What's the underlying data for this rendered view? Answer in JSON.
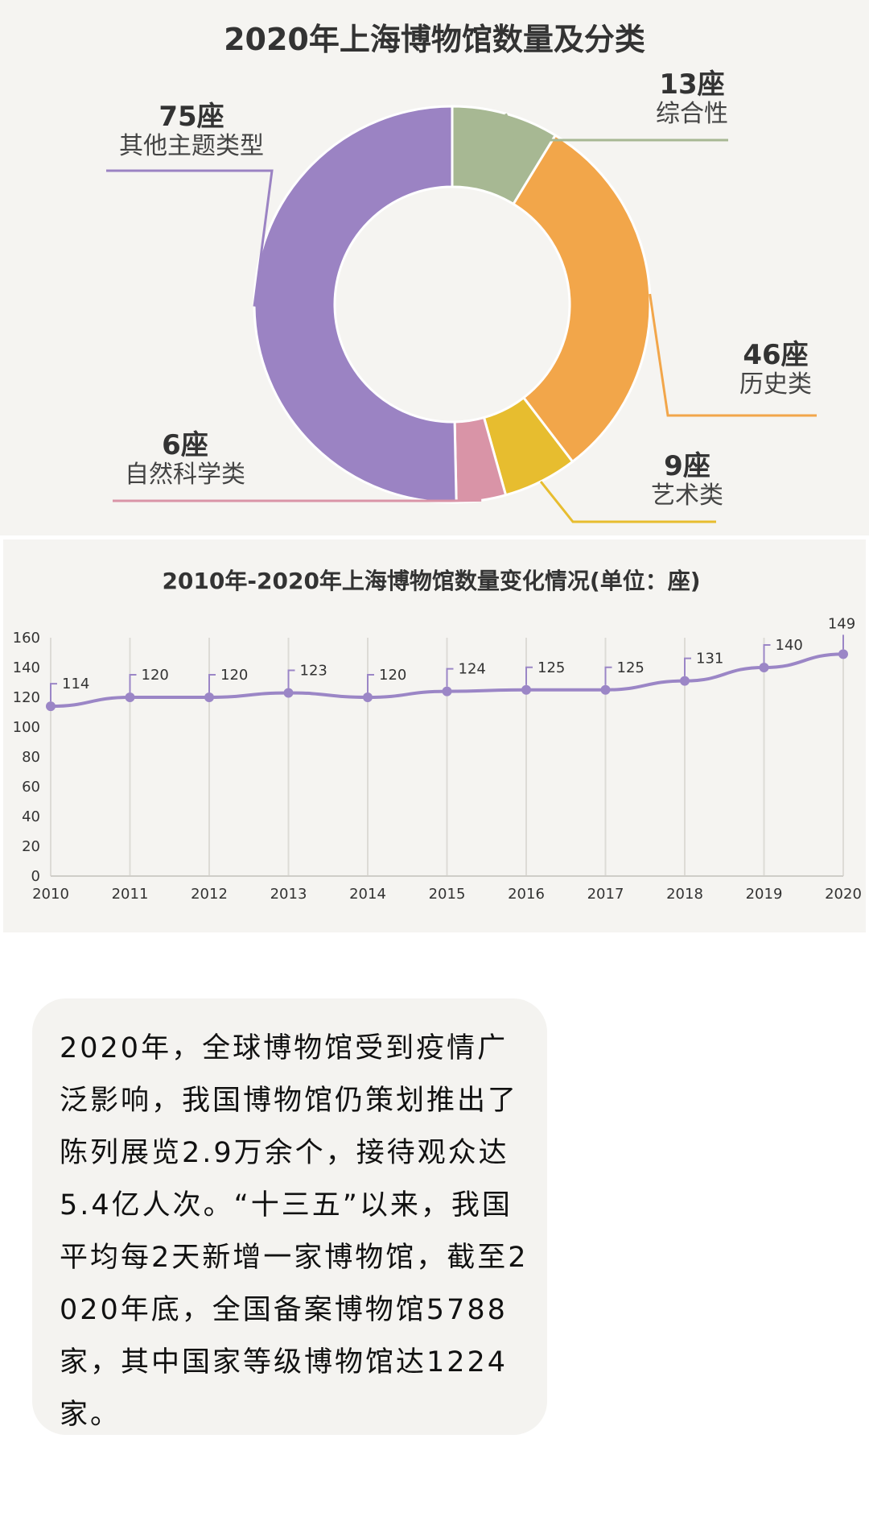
{
  "colors": {
    "panel_bg": "#f5f4f1",
    "line": "#9b86c6",
    "comprehensive": "#a7b893",
    "history": "#f2a64a",
    "art": "#e7bd2f",
    "nature_science": "#d994a7",
    "other": "#9b83c3"
  },
  "chart_data": [
    {
      "type": "pie",
      "donut": true,
      "title": "2020年上海博物馆数量及分类",
      "slices": [
        {
          "key": "comprehensive",
          "label": "综合性",
          "value": 13,
          "value_text": "13座"
        },
        {
          "key": "history",
          "label": "历史类",
          "value": 46,
          "value_text": "46座"
        },
        {
          "key": "art",
          "label": "艺术类",
          "value": 9,
          "value_text": "9座"
        },
        {
          "key": "nature_science",
          "label": "自然科学类",
          "value": 6,
          "value_text": "6座"
        },
        {
          "key": "other",
          "label": "其他主题类型",
          "value": 75,
          "value_text": "75座"
        }
      ]
    },
    {
      "type": "line",
      "title": "2010年-2020年上海博物馆数量变化情况(单位：座)",
      "x": [
        "2010",
        "2011",
        "2012",
        "2013",
        "2014",
        "2015",
        "2016",
        "2017",
        "2018",
        "2019",
        "2020"
      ],
      "values": [
        114,
        120,
        120,
        123,
        120,
        124,
        125,
        125,
        131,
        140,
        149
      ],
      "ylim": [
        0,
        160
      ],
      "y_ticks": [
        0,
        20,
        40,
        60,
        80,
        100,
        120,
        140,
        160
      ],
      "grid": "vertical",
      "legend": "none"
    }
  ],
  "summary": {
    "text": "2020年，全球博物馆受到疫情广泛影响，我国博物馆仍策划推出了陈列展览2.9万余个，接待观众达5.4亿人次。“十三五”以来，我国平均每2天新增一家博物馆，截至2020年底，全国备案博物馆5788家，其中国家等级博物馆达1224家。"
  }
}
